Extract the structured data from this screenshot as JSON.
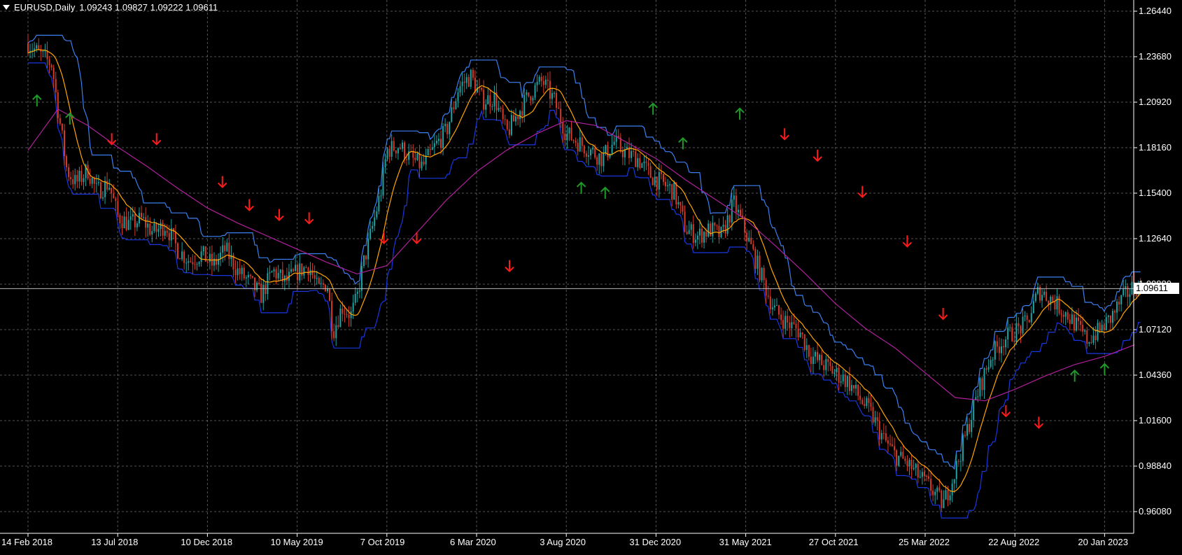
{
  "header": {
    "menu_icon": "triangle-down-icon",
    "symbol": "EURUSD,Daily",
    "ohlc": "1.09243 1.09827 1.09222 1.09611"
  },
  "colors": {
    "background": "#000000",
    "grid": "#9a9a9a",
    "axis": "#ffffff",
    "bull_candle": "#1fa3a3",
    "bear_candle": "#d43b2a",
    "ma_fast": "#ffa500",
    "ma_slow": "#b0209c",
    "band_upper": "#3c7ff0",
    "band_lower": "#1a37e0",
    "arrow_up": "#1e9a28",
    "arrow_down": "#ff1a1a",
    "price_line": "#b8b8b8"
  },
  "chart_data": {
    "type": "line",
    "title": "EURUSD,Daily",
    "grid": true,
    "current_price": "1.09611",
    "ylim": [
      0.946,
      1.274
    ],
    "y_ticks": [
      "1.26440",
      "1.23680",
      "1.20920",
      "1.18160",
      "1.15400",
      "1.12640",
      "1.09880",
      "1.07120",
      "1.04360",
      "1.01600",
      "0.98840",
      "0.96080"
    ],
    "x_ticks": [
      "14 Feb 2018",
      "13 Jul 2018",
      "10 Dec 2018",
      "10 May 2019",
      "7 Oct 2019",
      "6 Mar 2020",
      "3 Aug 2020",
      "31 Dec 2020",
      "31 May 2021",
      "27 Oct 2021",
      "25 Mar 2022",
      "22 Aug 2022",
      "20 Jan 2023"
    ],
    "price_path": [
      [
        0,
        1.245
      ],
      [
        0.4,
        1.238
      ],
      [
        0.8,
        1.232
      ],
      [
        1.0,
        1.205
      ],
      [
        1.3,
        1.168
      ],
      [
        1.6,
        1.16
      ],
      [
        2.0,
        1.168
      ],
      [
        2.3,
        1.155
      ],
      [
        2.7,
        1.16
      ],
      [
        3.0,
        1.14
      ],
      [
        3.4,
        1.135
      ],
      [
        3.8,
        1.138
      ],
      [
        4.2,
        1.13
      ],
      [
        4.6,
        1.135
      ],
      [
        5.0,
        1.12
      ],
      [
        5.4,
        1.113
      ],
      [
        5.8,
        1.117
      ],
      [
        6.2,
        1.11
      ],
      [
        6.6,
        1.12
      ],
      [
        7.0,
        1.107
      ],
      [
        7.4,
        1.1
      ],
      [
        7.8,
        1.092
      ],
      [
        8.2,
        1.107
      ],
      [
        8.6,
        1.1
      ],
      [
        9.0,
        1.106
      ],
      [
        9.4,
        1.11
      ],
      [
        9.7,
        1.095
      ],
      [
        10.0,
        1.1
      ],
      [
        10.2,
        1.07
      ],
      [
        10.5,
        1.085
      ],
      [
        10.8,
        1.08
      ],
      [
        11.0,
        1.09
      ],
      [
        11.2,
        1.11
      ],
      [
        11.5,
        1.132
      ],
      [
        11.8,
        1.155
      ],
      [
        12.0,
        1.18
      ],
      [
        12.4,
        1.183
      ],
      [
        12.8,
        1.175
      ],
      [
        13.2,
        1.17
      ],
      [
        13.6,
        1.182
      ],
      [
        14.0,
        1.192
      ],
      [
        14.4,
        1.218
      ],
      [
        14.8,
        1.225
      ],
      [
        15.2,
        1.21
      ],
      [
        15.6,
        1.212
      ],
      [
        16.0,
        1.19
      ],
      [
        16.4,
        1.203
      ],
      [
        16.8,
        1.215
      ],
      [
        17.2,
        1.222
      ],
      [
        17.6,
        1.21
      ],
      [
        18.0,
        1.19
      ],
      [
        18.4,
        1.185
      ],
      [
        18.8,
        1.18
      ],
      [
        19.2,
        1.175
      ],
      [
        19.6,
        1.185
      ],
      [
        20.0,
        1.178
      ],
      [
        20.4,
        1.175
      ],
      [
        20.8,
        1.165
      ],
      [
        21.2,
        1.16
      ],
      [
        21.6,
        1.155
      ],
      [
        22.0,
        1.132
      ],
      [
        22.4,
        1.128
      ],
      [
        22.8,
        1.132
      ],
      [
        23.2,
        1.128
      ],
      [
        23.6,
        1.148
      ],
      [
        24.0,
        1.13
      ],
      [
        24.4,
        1.11
      ],
      [
        24.8,
        1.09
      ],
      [
        25.0,
        1.082
      ],
      [
        25.4,
        1.075
      ],
      [
        25.8,
        1.07
      ],
      [
        26.2,
        1.055
      ],
      [
        26.6,
        1.05
      ],
      [
        27.0,
        1.045
      ],
      [
        27.4,
        1.04
      ],
      [
        27.8,
        1.03
      ],
      [
        28.2,
        1.02
      ],
      [
        28.6,
        1.005
      ],
      [
        29.0,
        0.995
      ],
      [
        29.4,
        0.99
      ],
      [
        29.8,
        0.982
      ],
      [
        30.2,
        0.975
      ],
      [
        30.6,
        0.965
      ],
      [
        31.0,
        0.985
      ],
      [
        31.4,
        1.01
      ],
      [
        31.8,
        1.035
      ],
      [
        32.2,
        1.055
      ],
      [
        32.6,
        1.065
      ],
      [
        33.0,
        1.07
      ],
      [
        33.4,
        1.075
      ],
      [
        33.8,
        1.095
      ],
      [
        34.2,
        1.09
      ],
      [
        34.6,
        1.083
      ],
      [
        35.0,
        1.075
      ],
      [
        35.4,
        1.065
      ],
      [
        35.8,
        1.07
      ],
      [
        36.2,
        1.078
      ],
      [
        36.6,
        1.09
      ],
      [
        37.0,
        1.098
      ],
      [
        37.2,
        1.096
      ]
    ],
    "ma_slow_path": [
      [
        0,
        1.18
      ],
      [
        1.0,
        1.205
      ],
      [
        2.0,
        1.195
      ],
      [
        3.0,
        1.182
      ],
      [
        4.0,
        1.17
      ],
      [
        5.0,
        1.157
      ],
      [
        6.0,
        1.145
      ],
      [
        7.0,
        1.136
      ],
      [
        8.0,
        1.128
      ],
      [
        9.0,
        1.12
      ],
      [
        10.0,
        1.112
      ],
      [
        11.0,
        1.105
      ],
      [
        12.0,
        1.11
      ],
      [
        13.0,
        1.13
      ],
      [
        14.0,
        1.15
      ],
      [
        15.0,
        1.167
      ],
      [
        16.0,
        1.18
      ],
      [
        17.0,
        1.19
      ],
      [
        18.0,
        1.198
      ],
      [
        19.0,
        1.195
      ],
      [
        20.0,
        1.185
      ],
      [
        21.0,
        1.175
      ],
      [
        22.0,
        1.162
      ],
      [
        23.0,
        1.15
      ],
      [
        24.0,
        1.138
      ],
      [
        25.0,
        1.122
      ],
      [
        26.0,
        1.105
      ],
      [
        27.0,
        1.087
      ],
      [
        28.0,
        1.072
      ],
      [
        29.0,
        1.06
      ],
      [
        30.0,
        1.045
      ],
      [
        31.0,
        1.03
      ],
      [
        32.0,
        1.028
      ],
      [
        33.0,
        1.035
      ],
      [
        34.0,
        1.043
      ],
      [
        35.0,
        1.05
      ],
      [
        36.0,
        1.055
      ],
      [
        37.0,
        1.062
      ]
    ],
    "arrows_up": [
      [
        0.3,
        1.21
      ],
      [
        1.4,
        1.199
      ],
      [
        18.5,
        1.157
      ],
      [
        19.3,
        1.154
      ],
      [
        20.9,
        1.205
      ],
      [
        21.9,
        1.184
      ],
      [
        23.8,
        1.202
      ],
      [
        35.0,
        1.043
      ],
      [
        36.0,
        1.047
      ]
    ],
    "arrows_down": [
      [
        2.8,
        1.187
      ],
      [
        4.3,
        1.187
      ],
      [
        6.5,
        1.161
      ],
      [
        7.4,
        1.147
      ],
      [
        8.4,
        1.141
      ],
      [
        9.4,
        1.139
      ],
      [
        11.9,
        1.127
      ],
      [
        13.0,
        1.127
      ],
      [
        16.1,
        1.11
      ],
      [
        25.3,
        1.19
      ],
      [
        26.4,
        1.177
      ],
      [
        27.9,
        1.155
      ],
      [
        29.4,
        1.125
      ],
      [
        30.6,
        1.081
      ],
      [
        32.7,
        1.022
      ],
      [
        33.8,
        1.015
      ]
    ]
  }
}
